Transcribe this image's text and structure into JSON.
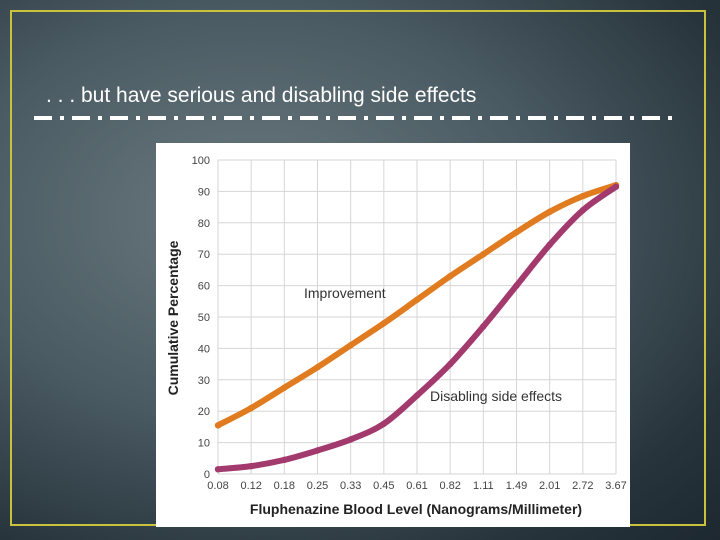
{
  "slide": {
    "title": ". . . but have serious and disabling side effects",
    "accent_color": "#c9c23a"
  },
  "chart_data": {
    "type": "line",
    "title": "",
    "xlabel": "Fluphenazine Blood Level (Nanograms/Millimeter)",
    "ylabel": "Cumulative Percentage",
    "x_scale": "log",
    "x": [
      0.08,
      0.12,
      0.18,
      0.25,
      0.33,
      0.45,
      0.61,
      0.82,
      1.11,
      1.49,
      2.01,
      2.72,
      3.67
    ],
    "xtick_labels": [
      "0.08",
      "0.12",
      "0.18",
      "0.25",
      "0.33",
      "0.45",
      "0.61",
      "0.82",
      "1.11",
      "1.49",
      "2.01",
      "2.72",
      "3.67"
    ],
    "ylim": [
      0,
      100
    ],
    "yticks": [
      0,
      10,
      20,
      30,
      40,
      50,
      60,
      70,
      80,
      90,
      100
    ],
    "grid": true,
    "series": [
      {
        "name": "Improvement",
        "color": "#e07b1f",
        "values": [
          15.5,
          21,
          27.5,
          34,
          41,
          48,
          55.5,
          63,
          70,
          77,
          83.5,
          88.5,
          92
        ]
      },
      {
        "name": "Disabling side effects",
        "color": "#a23a6e",
        "values": [
          1.5,
          2.5,
          4.5,
          7.5,
          11,
          16,
          25,
          35,
          47,
          60,
          73,
          84,
          91.5
        ]
      }
    ]
  }
}
